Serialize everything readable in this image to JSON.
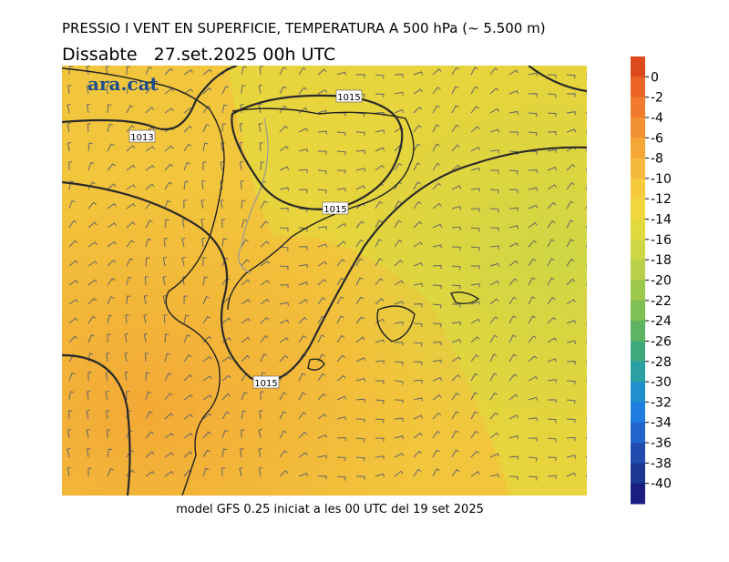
{
  "header": {
    "title": "PRESSIO I VENT EN SUPERFICIE, TEMPERATURA A 500 hPa (~ 5.500 m)",
    "date": "Dissabte   27.set.2025 00h UTC"
  },
  "map": {
    "logo": "ara.cat",
    "isobar_labels": [
      "1013",
      "1015",
      "1015",
      "1015"
    ]
  },
  "colorbar": {
    "ticks": [
      0,
      -2,
      -4,
      -6,
      -8,
      -10,
      -12,
      -14,
      -16,
      -18,
      -20,
      -22,
      -24,
      -26,
      -28,
      -30,
      -32,
      -34,
      -36,
      -38,
      -40
    ],
    "colors": [
      "#dd4a1c",
      "#ec6426",
      "#f27a2c",
      "#f39232",
      "#f4a637",
      "#f5b93b",
      "#f5cb3c",
      "#efd73c",
      "#e2da3d",
      "#cfd643",
      "#b8d049",
      "#9cc84d",
      "#7fbf54",
      "#5fb463",
      "#40a97c",
      "#2a9fa4",
      "#2090cc",
      "#1f7ee0",
      "#2264cc",
      "#204cb0",
      "#1c3694",
      "#1a1e80"
    ]
  },
  "footer": "model GFS 0.25 iniciat a les 00 UTC del 19 set 2025"
}
